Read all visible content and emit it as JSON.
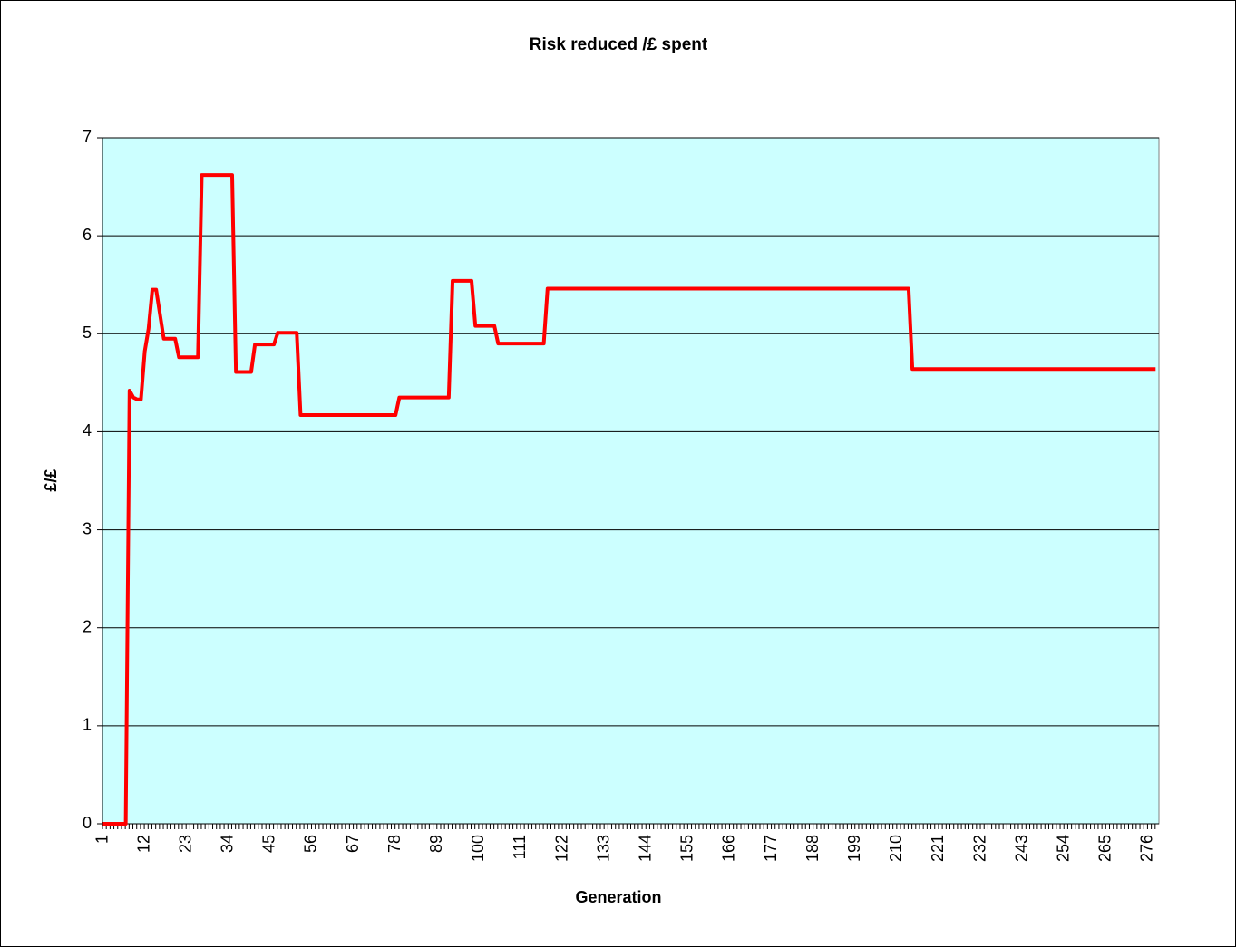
{
  "chart_data": {
    "type": "line",
    "title": "Risk reduced /£ spent",
    "x_label": "Generation",
    "y_label": "£/£",
    "color": "#ff0000",
    "ylim": [
      0,
      7
    ],
    "yticks": [
      0,
      1,
      2,
      3,
      4,
      5,
      6,
      7
    ],
    "grid": true,
    "categories": [
      1,
      null,
      null,
      null,
      null,
      null,
      null,
      null,
      null,
      null,
      null,
      12,
      null,
      null,
      null,
      null,
      null,
      null,
      null,
      null,
      null,
      null,
      23,
      null,
      null,
      null,
      null,
      null,
      null,
      null,
      null,
      null,
      null,
      34,
      null,
      null,
      null,
      null,
      null,
      null,
      null,
      null,
      null,
      null,
      45,
      null,
      null,
      null,
      null,
      null,
      null,
      null,
      null,
      null,
      null,
      56,
      null,
      null,
      null,
      null,
      null,
      null,
      null,
      null,
      null,
      null,
      67,
      null,
      null,
      null,
      null,
      null,
      null,
      null,
      null,
      null,
      null,
      78,
      null,
      null,
      null,
      null,
      null,
      null,
      null,
      null,
      null,
      null,
      89,
      null,
      null,
      null,
      null,
      null,
      null,
      null,
      null,
      null,
      null,
      100,
      null,
      null,
      null,
      null,
      null,
      null,
      null,
      null,
      null,
      null,
      111,
      null,
      null,
      null,
      null,
      null,
      null,
      null,
      null,
      null,
      null,
      122,
      null,
      null,
      null,
      null,
      null,
      null,
      null,
      null,
      null,
      null,
      133,
      null,
      null,
      null,
      null,
      null,
      null,
      null,
      null,
      null,
      null,
      144,
      null,
      null,
      null,
      null,
      null,
      null,
      null,
      null,
      null,
      null,
      155,
      null,
      null,
      null,
      null,
      null,
      null,
      null,
      null,
      null,
      null,
      166,
      null,
      null,
      null,
      null,
      null,
      null,
      null,
      null,
      null,
      null,
      177,
      null,
      null,
      null,
      null,
      null,
      null,
      null,
      null,
      null,
      null,
      188,
      null,
      null,
      null,
      null,
      null,
      null,
      null,
      null,
      null,
      null,
      199,
      null,
      null,
      null,
      null,
      null,
      null,
      null,
      null,
      null,
      null,
      210,
      null,
      null,
      null,
      null,
      null,
      null,
      null,
      null,
      null,
      null,
      221,
      null,
      null,
      null,
      null,
      null,
      null,
      null,
      null,
      null,
      null,
      232,
      null,
      null,
      null,
      null,
      null,
      null,
      null,
      null,
      null,
      null,
      243,
      null,
      null,
      null,
      null,
      null,
      null,
      null,
      null,
      null,
      null,
      254,
      null,
      null,
      null,
      null,
      null,
      null,
      null,
      null,
      null,
      null,
      265,
      null,
      null,
      null,
      null,
      null,
      null,
      null,
      null,
      null,
      null,
      276,
      null,
      null
    ],
    "values": [
      0,
      0,
      0,
      0,
      0,
      0,
      0,
      4.42,
      4.35,
      4.33,
      4.33,
      4.82,
      5.05,
      5.45,
      5.45,
      5.2,
      4.95,
      4.95,
      4.95,
      4.95,
      4.76,
      4.76,
      4.76,
      4.76,
      4.76,
      4.76,
      6.62,
      6.62,
      6.62,
      6.62,
      6.62,
      6.62,
      6.62,
      6.62,
      6.62,
      4.61,
      4.61,
      4.61,
      4.61,
      4.61,
      4.89,
      4.89,
      4.89,
      4.89,
      4.89,
      4.89,
      5.01,
      5.01,
      5.01,
      5.01,
      5.01,
      5.01,
      4.17,
      4.17,
      4.17,
      4.17,
      4.17,
      4.17,
      4.17,
      4.17,
      4.17,
      4.17,
      4.17,
      4.17,
      4.17,
      4.17,
      4.17,
      4.17,
      4.17,
      4.17,
      4.17,
      4.17,
      4.17,
      4.17,
      4.17,
      4.17,
      4.17,
      4.17,
      4.35,
      4.35,
      4.35,
      4.35,
      4.35,
      4.35,
      4.35,
      4.35,
      4.35,
      4.35,
      4.35,
      4.35,
      4.35,
      4.35,
      5.54,
      5.54,
      5.54,
      5.54,
      5.54,
      5.54,
      5.08,
      5.08,
      5.08,
      5.08,
      5.08,
      5.08,
      4.9,
      4.9,
      4.9,
      4.9,
      4.9,
      4.9,
      4.9,
      4.9,
      4.9,
      4.9,
      4.9,
      4.9,
      4.9,
      5.46,
      5.46,
      5.46,
      5.46,
      5.46,
      5.46,
      5.46,
      5.46,
      5.46,
      5.46,
      5.46,
      5.46,
      5.46,
      5.46,
      5.46,
      5.46,
      5.46,
      5.46,
      5.46,
      5.46,
      5.46,
      5.46,
      5.46,
      5.46,
      5.46,
      5.46,
      5.46,
      5.46,
      5.46,
      5.46,
      5.46,
      5.46,
      5.46,
      5.46,
      5.46,
      5.46,
      5.46,
      5.46,
      5.46,
      5.46,
      5.46,
      5.46,
      5.46,
      5.46,
      5.46,
      5.46,
      5.46,
      5.46,
      5.46,
      5.46,
      5.46,
      5.46,
      5.46,
      5.46,
      5.46,
      5.46,
      5.46,
      5.46,
      5.46,
      5.46,
      5.46,
      5.46,
      5.46,
      5.46,
      5.46,
      5.46,
      5.46,
      5.46,
      5.46,
      5.46,
      5.46,
      5.46,
      5.46,
      5.46,
      5.46,
      5.46,
      5.46,
      5.46,
      5.46,
      5.46,
      5.46,
      5.46,
      5.46,
      5.46,
      5.46,
      5.46,
      5.46,
      5.46,
      5.46,
      5.46,
      5.46,
      5.46,
      5.46,
      5.46,
      5.46,
      5.46,
      4.64,
      4.64,
      4.64,
      4.64,
      4.64,
      4.64,
      4.64,
      4.64,
      4.64,
      4.64,
      4.64,
      4.64,
      4.64,
      4.64,
      4.64,
      4.64,
      4.64,
      4.64,
      4.64,
      4.64,
      4.64,
      4.64,
      4.64,
      4.64,
      4.64,
      4.64,
      4.64,
      4.64,
      4.64,
      4.64,
      4.64,
      4.64,
      4.64,
      4.64,
      4.64,
      4.64,
      4.64,
      4.64,
      4.64,
      4.64,
      4.64,
      4.64,
      4.64,
      4.64,
      4.64,
      4.64,
      4.64,
      4.64,
      4.64,
      4.64,
      4.64,
      4.64,
      4.64,
      4.64,
      4.64,
      4.64,
      4.64,
      4.64,
      4.64,
      4.64,
      4.64,
      4.64,
      4.64,
      4.64,
      4.64
    ]
  }
}
